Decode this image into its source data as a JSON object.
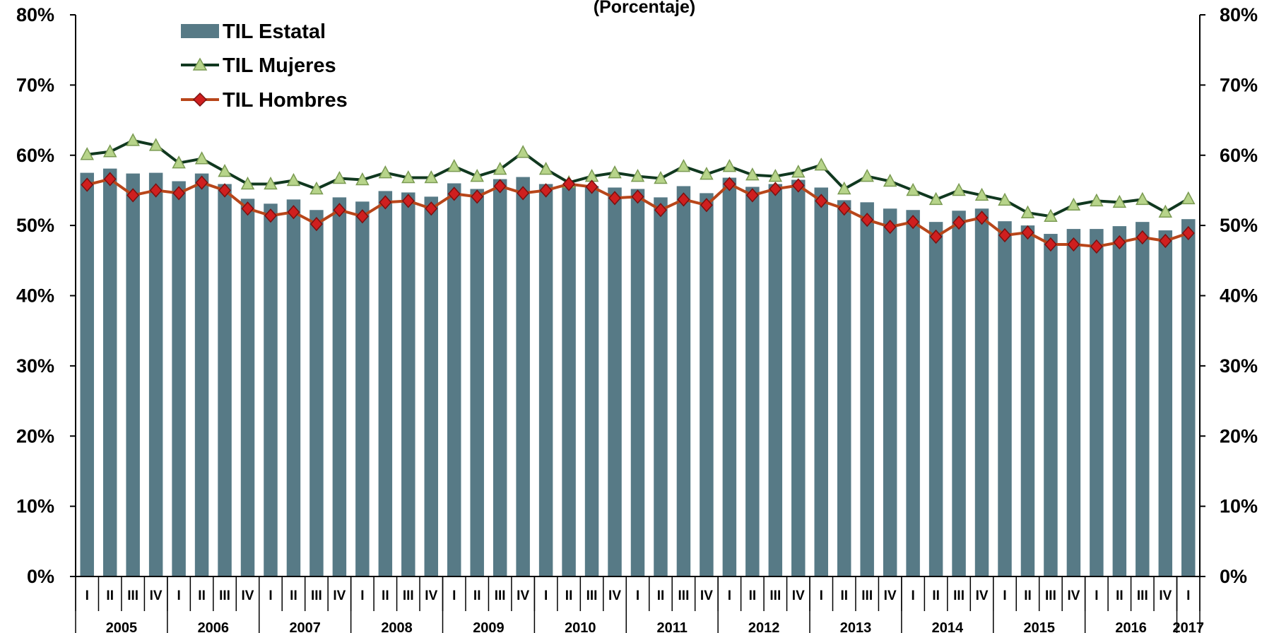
{
  "chart_data": {
    "type": "bar",
    "title": "(Porcentaje)",
    "ylim": [
      0,
      80
    ],
    "y_ticks": [
      "0%",
      "10%",
      "20%",
      "30%",
      "40%",
      "50%",
      "60%",
      "70%",
      "80%"
    ],
    "quarters": [
      "I",
      "II",
      "III",
      "IV",
      "I",
      "II",
      "III",
      "IV",
      "I",
      "II",
      "III",
      "IV",
      "I",
      "II",
      "III",
      "IV",
      "I",
      "II",
      "III",
      "IV",
      "I",
      "II",
      "III",
      "IV",
      "I",
      "II",
      "III",
      "IV",
      "I",
      "II",
      "III",
      "IV",
      "I",
      "II",
      "III",
      "IV",
      "I",
      "II",
      "III",
      "IV",
      "I",
      "II",
      "III",
      "IV",
      "I",
      "II",
      "III",
      "IV",
      "I"
    ],
    "years": [
      {
        "label": "2005",
        "quarters": 4
      },
      {
        "label": "2006",
        "quarters": 4
      },
      {
        "label": "2007",
        "quarters": 4
      },
      {
        "label": "2008",
        "quarters": 4
      },
      {
        "label": "2009",
        "quarters": 4
      },
      {
        "label": "2010",
        "quarters": 4
      },
      {
        "label": "2011",
        "quarters": 4
      },
      {
        "label": "2012",
        "quarters": 4
      },
      {
        "label": "2013",
        "quarters": 4
      },
      {
        "label": "2014",
        "quarters": 4
      },
      {
        "label": "2015",
        "quarters": 4
      },
      {
        "label": "2016",
        "quarters": 4
      },
      {
        "label": "2017",
        "quarters": 1
      }
    ],
    "series": [
      {
        "name": "TIL Estatal",
        "type": "bar",
        "color": "#577a86",
        "values": [
          57.5,
          58.1,
          57.4,
          57.5,
          56.3,
          57.4,
          55.9,
          53.8,
          53.1,
          53.7,
          52.2,
          54.0,
          53.4,
          54.9,
          54.7,
          54.1,
          56.0,
          55.2,
          56.6,
          56.9,
          55.9,
          55.7,
          55.6,
          55.4,
          55.2,
          54.0,
          55.6,
          54.6,
          56.8,
          55.5,
          55.9,
          56.5,
          55.4,
          53.6,
          53.3,
          52.4,
          52.2,
          50.5,
          52.1,
          52.4,
          50.6,
          50.0,
          48.8,
          49.5,
          49.5,
          49.9,
          50.5,
          49.3,
          50.9
        ]
      },
      {
        "name": "TIL Mujeres",
        "type": "line",
        "color": "#10381f",
        "marker": "triangle",
        "marker_color": "#b7d48a",
        "values": [
          60.1,
          60.5,
          62.1,
          61.4,
          58.9,
          59.5,
          57.7,
          55.9,
          55.9,
          56.4,
          55.2,
          56.7,
          56.5,
          57.5,
          56.8,
          56.8,
          58.4,
          57.0,
          58.0,
          60.4,
          58.0,
          56.1,
          57.0,
          57.5,
          57.0,
          56.7,
          58.4,
          57.3,
          58.4,
          57.2,
          57.0,
          57.6,
          58.6,
          55.2,
          57.0,
          56.3,
          55.0,
          53.7,
          55.0,
          54.3,
          53.6,
          51.8,
          51.3,
          52.9,
          53.5,
          53.3,
          53.7,
          51.9,
          53.8
        ]
      },
      {
        "name": "TIL Hombres",
        "type": "line",
        "color": "#b8461a",
        "marker": "diamond",
        "marker_color": "#cf1f1f",
        "values": [
          55.8,
          56.6,
          54.3,
          55.0,
          54.6,
          56.1,
          55.0,
          52.4,
          51.4,
          51.9,
          50.2,
          52.2,
          51.3,
          53.3,
          53.5,
          52.4,
          54.5,
          54.1,
          55.6,
          54.6,
          55.0,
          55.9,
          55.5,
          53.9,
          54.1,
          52.2,
          53.7,
          52.9,
          55.9,
          54.3,
          55.2,
          55.7,
          53.5,
          52.4,
          50.8,
          49.8,
          50.5,
          48.4,
          50.4,
          51.1,
          48.6,
          49.0,
          47.3,
          47.3,
          47.0,
          47.6,
          48.3,
          47.8,
          48.9
        ]
      }
    ],
    "legend_position": "top-left",
    "grid": false
  }
}
